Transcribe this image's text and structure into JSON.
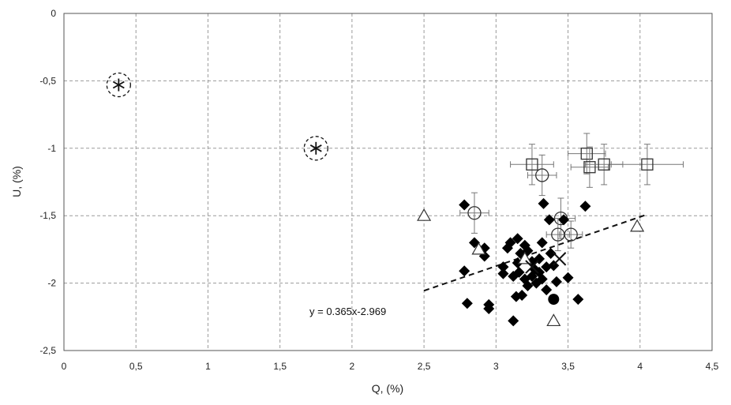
{
  "chart_data": {
    "type": "scatter",
    "xlabel": "Q, (%)",
    "ylabel": "U, (%)",
    "xlim": [
      0,
      4.5
    ],
    "ylim": [
      -2.5,
      0
    ],
    "grid": true,
    "x_ticks": [
      "0",
      "0,5",
      "1",
      "1,5",
      "2",
      "2,5",
      "3",
      "3,5",
      "4",
      "4,5"
    ],
    "y_ticks": [
      "0",
      "-0,5",
      "-1",
      "-1,5",
      "-2",
      "-2,5"
    ],
    "trendline": {
      "label": "y = 0.365x-2.969",
      "slope": 0.365,
      "intercept": -2.969,
      "x_range": [
        2.5,
        4.05
      ],
      "style": "dashed"
    },
    "series": [
      {
        "marker": "filled-diamond",
        "points": [
          [
            2.78,
            -1.42
          ],
          [
            2.78,
            -1.91
          ],
          [
            2.8,
            -2.15
          ],
          [
            2.85,
            -1.7
          ],
          [
            2.92,
            -1.74
          ],
          [
            2.92,
            -1.8
          ],
          [
            2.95,
            -2.16
          ],
          [
            2.95,
            -2.19
          ],
          [
            3.05,
            -1.88
          ],
          [
            3.05,
            -1.93
          ],
          [
            3.08,
            -1.74
          ],
          [
            3.1,
            -1.7
          ],
          [
            3.12,
            -1.95
          ],
          [
            3.12,
            -2.28
          ],
          [
            3.14,
            -2.1
          ],
          [
            3.15,
            -1.67
          ],
          [
            3.15,
            -1.85
          ],
          [
            3.16,
            -1.92
          ],
          [
            3.17,
            -1.78
          ],
          [
            3.18,
            -2.09
          ],
          [
            3.2,
            -1.72
          ],
          [
            3.2,
            -1.97
          ],
          [
            3.22,
            -1.76
          ],
          [
            3.22,
            -2.02
          ],
          [
            3.25,
            -1.84
          ],
          [
            3.25,
            -1.95
          ],
          [
            3.27,
            -1.9
          ],
          [
            3.28,
            -2.0
          ],
          [
            3.3,
            -1.82
          ],
          [
            3.3,
            -1.92
          ],
          [
            3.32,
            -1.7
          ],
          [
            3.32,
            -1.97
          ],
          [
            3.33,
            -1.41
          ],
          [
            3.35,
            -1.88
          ],
          [
            3.35,
            -2.05
          ],
          [
            3.37,
            -1.53
          ],
          [
            3.38,
            -1.78
          ],
          [
            3.4,
            -1.87
          ],
          [
            3.42,
            -1.99
          ],
          [
            3.47,
            -1.53
          ],
          [
            3.5,
            -1.96
          ],
          [
            3.57,
            -2.12
          ],
          [
            3.62,
            -1.43
          ]
        ]
      },
      {
        "marker": "filled-circle",
        "points": [
          [
            3.4,
            -2.12
          ]
        ]
      },
      {
        "marker": "open-circle",
        "error_bars": true,
        "points": [
          {
            "x": 2.85,
            "y": -1.48,
            "xerr": 0.1,
            "yerr": 0.15
          },
          {
            "x": 3.32,
            "y": -1.2,
            "xerr": 0.1,
            "yerr": 0.15
          },
          {
            "x": 3.45,
            "y": -1.52,
            "xerr": 0.1,
            "yerr": 0.15
          },
          {
            "x": 3.43,
            "y": -1.64,
            "xerr": 0.08,
            "yerr": 0.12
          },
          {
            "x": 3.52,
            "y": -1.64,
            "xerr": 0.08,
            "yerr": 0.1
          }
        ]
      },
      {
        "marker": "open-square",
        "error_bars": true,
        "points": [
          {
            "x": 3.25,
            "y": -1.12,
            "xerr": 0.15,
            "yerr": 0.15
          },
          {
            "x": 3.63,
            "y": -1.04,
            "xerr": 0.13,
            "yerr": 0.15
          },
          {
            "x": 3.65,
            "y": -1.14,
            "xerr": 0.13,
            "yerr": 0.15
          },
          {
            "x": 3.75,
            "y": -1.12,
            "xerr": 0.13,
            "yerr": 0.15
          },
          {
            "x": 4.05,
            "y": -1.12,
            "xerr": 0.25,
            "yerr": 0.15
          }
        ]
      },
      {
        "marker": "open-triangle",
        "points": [
          [
            2.5,
            -1.5
          ],
          [
            2.88,
            -1.75
          ],
          [
            3.2,
            -1.82
          ],
          [
            3.4,
            -2.28
          ],
          [
            3.98,
            -1.58
          ]
        ]
      },
      {
        "marker": "cross",
        "points": [
          [
            3.44,
            -1.82
          ],
          [
            3.25,
            -1.88
          ]
        ]
      },
      {
        "marker": "star-in-dashed-circle",
        "points": [
          [
            0.38,
            -0.53
          ],
          [
            1.75,
            -1.0
          ]
        ]
      }
    ]
  }
}
